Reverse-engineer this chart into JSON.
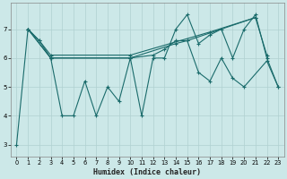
{
  "xlabel": "Humidex (Indice chaleur)",
  "bg_color": "#cce8e8",
  "grid_color": "#b0d0d0",
  "line_color": "#1a6b6b",
  "xlim": [
    -0.5,
    23.5
  ],
  "ylim": [
    2.6,
    7.9
  ],
  "xticks": [
    0,
    1,
    2,
    3,
    4,
    5,
    6,
    7,
    8,
    9,
    10,
    11,
    12,
    13,
    14,
    15,
    16,
    17,
    18,
    19,
    20,
    21,
    22,
    23
  ],
  "yticks": [
    3,
    4,
    5,
    6,
    7
  ],
  "s1_x": [
    0,
    1,
    2,
    3,
    4,
    5,
    6,
    7,
    8,
    9,
    10,
    11,
    12,
    13,
    14,
    15,
    16,
    17,
    18,
    19,
    20,
    21,
    22,
    23
  ],
  "s1_y": [
    3.0,
    7.0,
    6.6,
    6.0,
    4.0,
    4.0,
    5.2,
    4.0,
    5.0,
    4.5,
    6.0,
    4.0,
    6.0,
    6.0,
    7.0,
    7.5,
    6.5,
    6.8,
    7.0,
    6.0,
    7.0,
    7.5,
    6.0,
    5.0
  ],
  "s2_x": [
    1,
    2,
    3,
    10,
    17,
    21
  ],
  "s2_y": [
    7.0,
    6.6,
    6.1,
    6.1,
    6.9,
    7.4
  ],
  "s3_x": [
    1,
    3,
    10,
    14,
    15,
    21,
    22
  ],
  "s3_y": [
    7.0,
    6.0,
    6.0,
    6.5,
    6.6,
    7.4,
    6.1
  ],
  "s4_x": [
    1,
    3,
    10,
    12,
    13,
    14,
    15,
    16,
    17,
    18,
    19,
    20,
    22,
    23
  ],
  "s4_y": [
    7.0,
    6.0,
    6.0,
    6.1,
    6.3,
    6.6,
    6.6,
    5.5,
    5.2,
    6.0,
    5.3,
    5.0,
    5.9,
    5.0
  ]
}
